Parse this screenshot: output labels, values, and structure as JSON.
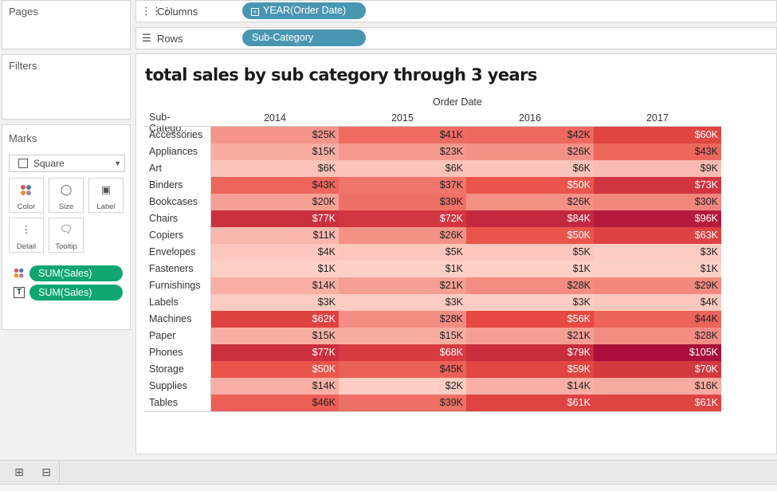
{
  "sidebar": {
    "pages_title": "Pages",
    "filters_title": "Filters",
    "marks_title": "Marks",
    "mark_type": "Square",
    "buttons": [
      {
        "label": "Color",
        "icon": "color-dots-icon"
      },
      {
        "label": "Size",
        "icon": "size-icon"
      },
      {
        "label": "Label",
        "icon": "label-icon"
      },
      {
        "label": "Detail",
        "icon": "detail-icon"
      },
      {
        "label": "Tooltip",
        "icon": "tooltip-icon"
      }
    ],
    "mark_pills": [
      {
        "icon": "color-dots-icon",
        "label": "SUM(Sales)"
      },
      {
        "icon": "text-label-icon",
        "label": "SUM(Sales)"
      }
    ]
  },
  "shelves": {
    "columns_label": "Columns",
    "columns_pill": "YEAR(Order Date)",
    "rows_label": "Rows",
    "rows_pill": "Sub-Category"
  },
  "viz": {
    "title": "total sales by sub category through 3 years",
    "column_group_header": "Order Date",
    "row_header": "Sub-Catego..",
    "colors": {
      "low": "#fdd0c6",
      "high": "#a90f3a",
      "light_text": "#ffffff",
      "dark_text": "#222222"
    }
  },
  "chart_data": {
    "type": "heatmap",
    "title": "total sales by sub category through 3 years",
    "xlabel": "Order Date",
    "ylabel": "Sub-Catego..",
    "columns": [
      "2014",
      "2015",
      "2016",
      "2017"
    ],
    "rows": [
      "Accessories",
      "Appliances",
      "Art",
      "Binders",
      "Bookcases",
      "Chairs",
      "Copiers",
      "Envelopes",
      "Fasteners",
      "Furnishings",
      "Labels",
      "Machines",
      "Paper",
      "Phones",
      "Storage",
      "Supplies",
      "Tables"
    ],
    "values": [
      [
        25,
        41,
        42,
        60
      ],
      [
        15,
        23,
        26,
        43
      ],
      [
        6,
        6,
        6,
        9
      ],
      [
        43,
        37,
        50,
        73
      ],
      [
        20,
        39,
        26,
        30
      ],
      [
        77,
        72,
        84,
        96
      ],
      [
        11,
        26,
        50,
        63
      ],
      [
        4,
        5,
        5,
        3
      ],
      [
        1,
        1,
        1,
        1
      ],
      [
        14,
        21,
        28,
        29
      ],
      [
        3,
        3,
        3,
        4
      ],
      [
        62,
        28,
        56,
        44
      ],
      [
        15,
        15,
        21,
        28
      ],
      [
        77,
        68,
        79,
        105
      ],
      [
        50,
        45,
        59,
        70
      ],
      [
        14,
        2,
        14,
        16
      ],
      [
        46,
        39,
        61,
        61
      ]
    ],
    "labels": [
      [
        "$25K",
        "$41K",
        "$42K",
        "$60K"
      ],
      [
        "$15K",
        "$23K",
        "$26K",
        "$43K"
      ],
      [
        "$6K",
        "$6K",
        "$6K",
        "$9K"
      ],
      [
        "$43K",
        "$37K",
        "$50K",
        "$73K"
      ],
      [
        "$20K",
        "$39K",
        "$26K",
        "$30K"
      ],
      [
        "$77K",
        "$72K",
        "$84K",
        "$96K"
      ],
      [
        "$11K",
        "$26K",
        "$50K",
        "$63K"
      ],
      [
        "$4K",
        "$5K",
        "$5K",
        "$3K"
      ],
      [
        "$1K",
        "$1K",
        "$1K",
        "$1K"
      ],
      [
        "$14K",
        "$21K",
        "$28K",
        "$29K"
      ],
      [
        "$3K",
        "$3K",
        "$3K",
        "$4K"
      ],
      [
        "$62K",
        "$28K",
        "$56K",
        "$44K"
      ],
      [
        "$15K",
        "$15K",
        "$21K",
        "$28K"
      ],
      [
        "$77K",
        "$68K",
        "$79K",
        "$105K"
      ],
      [
        "$50K",
        "$45K",
        "$59K",
        "$70K"
      ],
      [
        "$14K",
        "$2K",
        "$14K",
        "$16K"
      ],
      [
        "$46K",
        "$39K",
        "$61K",
        "$61K"
      ]
    ],
    "unit": "thousands USD"
  }
}
